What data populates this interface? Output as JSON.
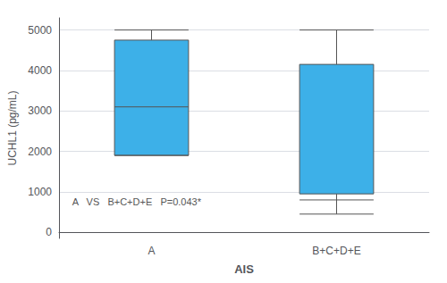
{
  "chart_data": {
    "type": "boxplot",
    "xlabel": "AIS",
    "ylabel": "UCHL1 (pg/mL)",
    "categories": [
      "A",
      "B+C+D+E"
    ],
    "boxes": [
      {
        "whisker_low": 1900,
        "q1": 1900,
        "median": 3100,
        "q3": 4750,
        "whisker_high": 5000
      },
      {
        "whisker_low": 450,
        "q1": 950,
        "median": 800,
        "q3": 4150,
        "whisker_high": 5000
      }
    ],
    "color": "#3db0e8",
    "ylim": [
      -150,
      5300
    ],
    "yticks": [
      0,
      1000,
      2000,
      3000,
      4000,
      5000
    ],
    "grid": true,
    "annotation": "A   VS   B+C+D+E   P=0.043*"
  }
}
